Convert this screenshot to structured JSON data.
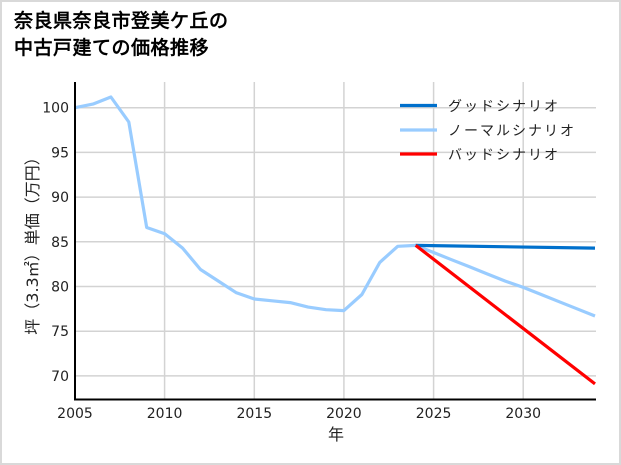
{
  "title": {
    "line1": "奈良県奈良市登美ケ丘の",
    "line2": "中古戸建ての価格推移"
  },
  "colors": {
    "good": "#0070cc",
    "normal": "#99ccff",
    "bad": "#ff0000",
    "grid": "#d3d3d3",
    "axis": "#000000"
  },
  "chart_data": {
    "type": "line",
    "title": "奈良県奈良市登美ケ丘の中古戸建ての価格推移",
    "xlabel": "年",
    "ylabel": "坪（3.3㎡）単価（万円）",
    "xlim": [
      2005,
      2034
    ],
    "ylim": [
      67.4,
      102.9
    ],
    "xticks": [
      2005,
      2010,
      2015,
      2020,
      2025,
      2030
    ],
    "yticks": [
      70,
      75,
      80,
      85,
      90,
      95,
      100
    ],
    "grid": true,
    "legend_position": "upper right",
    "legend": [
      "グッドシナリオ",
      "ノーマルシナリオ",
      "バッドシナリオ"
    ],
    "series": [
      {
        "name": "ノーマルシナリオ",
        "color": "#99ccff",
        "x": [
          2005,
          2006,
          2007,
          2008,
          2009,
          2010,
          2011,
          2012,
          2013,
          2014,
          2015,
          2016,
          2017,
          2018,
          2019,
          2020,
          2021,
          2022,
          2023,
          2024,
          2025,
          2026,
          2027,
          2028,
          2029,
          2030,
          2031,
          2032,
          2033,
          2034
        ],
        "values": [
          100.0,
          100.4,
          101.2,
          98.4,
          86.6,
          85.9,
          84.3,
          81.9,
          80.6,
          79.3,
          78.6,
          78.4,
          78.2,
          77.7,
          77.4,
          77.3,
          79.1,
          82.7,
          84.5,
          84.6,
          83.8,
          83.0,
          82.2,
          81.4,
          80.6,
          79.9,
          79.1,
          78.3,
          77.5,
          76.7
        ]
      },
      {
        "name": "グッドシナリオ",
        "color": "#0070cc",
        "x": [
          2024,
          2034
        ],
        "values": [
          84.6,
          84.3
        ]
      },
      {
        "name": "バッドシナリオ",
        "color": "#ff0000",
        "x": [
          2024,
          2034
        ],
        "values": [
          84.6,
          69.1
        ]
      }
    ]
  },
  "axes": {
    "xticks": [
      "2005",
      "2010",
      "2015",
      "2020",
      "2025",
      "2030"
    ],
    "yticks": [
      "100",
      "95",
      "90",
      "85",
      "80",
      "75",
      "70"
    ],
    "xlabel": "年",
    "ylabel": "坪（3.3㎡）単価（万円）"
  },
  "legend": {
    "good": "グッドシナリオ",
    "normal": "ノーマルシナリオ",
    "bad": "バッドシナリオ"
  }
}
